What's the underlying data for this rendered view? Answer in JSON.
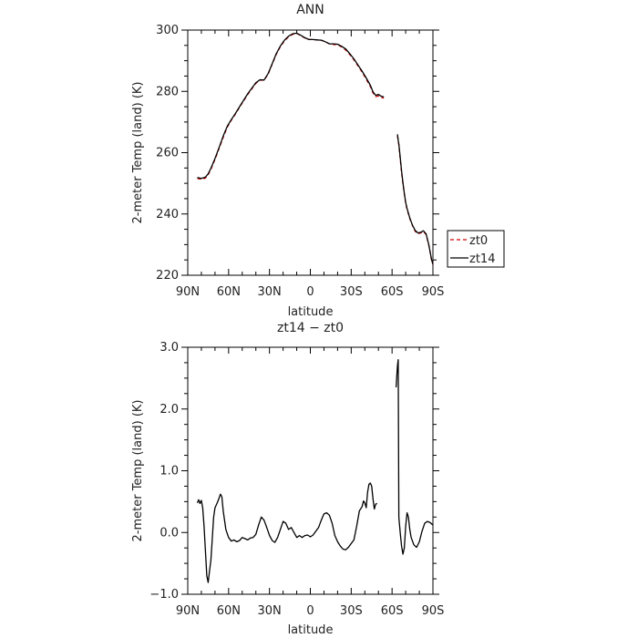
{
  "chart_data": [
    {
      "type": "line",
      "title": "ANN",
      "xlabel": "latitude",
      "ylabel": "2-meter Temp (land) (K)",
      "xlim": [
        90,
        -90
      ],
      "ylim": [
        220,
        300
      ],
      "x_ticks": [
        90,
        60,
        30,
        0,
        -30,
        -60,
        -90
      ],
      "x_tick_labels": [
        "90N",
        "60N",
        "30N",
        "0",
        "30S",
        "60S",
        "90S"
      ],
      "y_ticks": [
        220,
        240,
        260,
        280,
        300
      ],
      "y_tick_labels": [
        "220",
        "240",
        "260",
        "280",
        "300"
      ],
      "legend": {
        "placement": "right",
        "entries": [
          "zt0",
          "zt14"
        ]
      },
      "series": [
        {
          "name": "zt0",
          "color": "#cc0000",
          "dash": "dashed",
          "segments": [
            [
              [
                83,
                251.6
              ],
              [
                80,
                251.3
              ],
              [
                77,
                251.7
              ],
              [
                75,
                252.8
              ],
              [
                73,
                254.6
              ],
              [
                70,
                257.8
              ],
              [
                67,
                261.4
              ],
              [
                64,
                265.0
              ],
              [
                61,
                268.3
              ],
              [
                58,
                270.6
              ],
              [
                55,
                272.6
              ],
              [
                52,
                274.8
              ],
              [
                49,
                276.9
              ],
              [
                46,
                279.0
              ],
              [
                43,
                280.8
              ],
              [
                40,
                282.6
              ],
              [
                37,
                283.7
              ],
              [
                34,
                283.6
              ],
              [
                31,
                285.6
              ],
              [
                28,
                288.9
              ],
              [
                25,
                292.1
              ],
              [
                22,
                294.6
              ],
              [
                19,
                296.5
              ],
              [
                16,
                297.8
              ],
              [
                13,
                298.6
              ],
              [
                10,
                298.9
              ],
              [
                7,
                298.2
              ],
              [
                4,
                297.4
              ],
              [
                1,
                296.9
              ],
              [
                -2,
                296.9
              ],
              [
                -5,
                296.8
              ],
              [
                -8,
                296.7
              ],
              [
                -11,
                296.2
              ],
              [
                -14,
                295.5
              ],
              [
                -17,
                295.3
              ],
              [
                -20,
                295.2
              ],
              [
                -23,
                294.5
              ],
              [
                -26,
                293.5
              ],
              [
                -29,
                292.0
              ],
              [
                -32,
                290.3
              ],
              [
                -35,
                288.3
              ],
              [
                -38,
                286.3
              ],
              [
                -41,
                284.0
              ],
              [
                -44,
                281.6
              ],
              [
                -46,
                279.5
              ],
              [
                -48,
                278.3
              ],
              [
                -50,
                278.5
              ],
              [
                -52,
                278.0
              ],
              [
                -54,
                277.8
              ]
            ],
            [
              [
                -64,
                265.5
              ],
              [
                -65,
                262.5
              ],
              [
                -66,
                258.0
              ],
              [
                -67,
                253.5
              ],
              [
                -68,
                249.8
              ],
              [
                -69,
                246.5
              ],
              [
                -70,
                243.5
              ],
              [
                -71,
                241.5
              ],
              [
                -73,
                238.5
              ],
              [
                -75,
                236.2
              ],
              [
                -77,
                234.3
              ],
              [
                -79,
                233.5
              ],
              [
                -81,
                233.8
              ],
              [
                -83,
                234.3
              ],
              [
                -85,
                233.3
              ],
              [
                -87,
                229.8
              ],
              [
                -89,
                225.0
              ],
              [
                -90,
                223.5
              ]
            ]
          ]
        },
        {
          "name": "zt14",
          "color": "#000000",
          "dash": "solid",
          "segments": [
            [
              [
                83,
                251.9
              ],
              [
                80,
                251.6
              ],
              [
                77,
                252.0
              ],
              [
                75,
                253.1
              ],
              [
                73,
                254.9
              ],
              [
                70,
                258.1
              ],
              [
                67,
                261.7
              ],
              [
                64,
                265.4
              ],
              [
                61,
                268.6
              ],
              [
                58,
                270.8
              ],
              [
                55,
                272.8
              ],
              [
                52,
                275.0
              ],
              [
                49,
                277.1
              ],
              [
                46,
                279.2
              ],
              [
                43,
                281.0
              ],
              [
                40,
                282.8
              ],
              [
                37,
                283.8
              ],
              [
                34,
                283.7
              ],
              [
                31,
                285.8
              ],
              [
                28,
                289.1
              ],
              [
                25,
                292.3
              ],
              [
                22,
                294.8
              ],
              [
                19,
                296.7
              ],
              [
                16,
                298.0
              ],
              [
                13,
                298.8
              ],
              [
                10,
                299.0
              ],
              [
                7,
                298.3
              ],
              [
                4,
                297.5
              ],
              [
                1,
                296.9
              ],
              [
                -2,
                296.9
              ],
              [
                -5,
                296.8
              ],
              [
                -8,
                296.7
              ],
              [
                -11,
                296.2
              ],
              [
                -14,
                295.5
              ],
              [
                -17,
                295.5
              ],
              [
                -20,
                295.4
              ],
              [
                -23,
                294.7
              ],
              [
                -26,
                293.8
              ],
              [
                -29,
                292.3
              ],
              [
                -32,
                290.6
              ],
              [
                -35,
                288.6
              ],
              [
                -38,
                286.6
              ],
              [
                -41,
                284.4
              ],
              [
                -44,
                282.0
              ],
              [
                -46,
                279.9
              ],
              [
                -48,
                278.7
              ],
              [
                -50,
                279.0
              ],
              [
                -52,
                278.4
              ],
              [
                -54,
                278.2
              ]
            ],
            [
              [
                -64,
                266.0
              ],
              [
                -64.5,
                264.0
              ],
              [
                -65,
                262.8
              ],
              [
                -66,
                258.5
              ],
              [
                -67,
                254.0
              ],
              [
                -68,
                250.2
              ],
              [
                -69,
                246.8
              ],
              [
                -70,
                243.8
              ],
              [
                -71,
                241.8
              ],
              [
                -73,
                238.7
              ],
              [
                -75,
                236.3
              ],
              [
                -77,
                234.6
              ],
              [
                -79,
                233.8
              ],
              [
                -81,
                234.0
              ],
              [
                -83,
                234.5
              ],
              [
                -85,
                233.5
              ],
              [
                -87,
                229.9
              ],
              [
                -89,
                225.1
              ],
              [
                -90,
                223.6
              ]
            ]
          ]
        }
      ]
    },
    {
      "type": "line",
      "title": "zt14 − zt0",
      "xlabel": "latitude",
      "ylabel": "2-meter Temp (land) (K)",
      "xlim": [
        90,
        -90
      ],
      "ylim": [
        -1.0,
        3.0
      ],
      "x_ticks": [
        90,
        60,
        30,
        0,
        -30,
        -60,
        -90
      ],
      "x_tick_labels": [
        "90N",
        "60N",
        "30N",
        "0",
        "30S",
        "60S",
        "90S"
      ],
      "y_ticks": [
        -1.0,
        0.0,
        1.0,
        2.0,
        3.0
      ],
      "y_tick_labels": [
        "−1.0",
        "0.0",
        "1.0",
        "2.0",
        "3.0"
      ],
      "series": [
        {
          "name": "",
          "color": "#000000",
          "dash": "solid",
          "segments": [
            [
              [
                83,
                0.48
              ],
              [
                82,
                0.53
              ],
              [
                81,
                0.47
              ],
              [
                80,
                0.52
              ],
              [
                79,
                0.4
              ],
              [
                78,
                0.1
              ],
              [
                77,
                -0.3
              ],
              [
                76,
                -0.7
              ],
              [
                75,
                -0.81
              ],
              [
                74,
                -0.62
              ],
              [
                73,
                -0.45
              ],
              [
                72,
                -0.1
              ],
              [
                71,
                0.25
              ],
              [
                70,
                0.4
              ],
              [
                68,
                0.5
              ],
              [
                66,
                0.62
              ],
              [
                65,
                0.58
              ],
              [
                64,
                0.35
              ],
              [
                62,
                0.05
              ],
              [
                60,
                -0.08
              ],
              [
                58,
                -0.14
              ],
              [
                56,
                -0.12
              ],
              [
                54,
                -0.15
              ],
              [
                52,
                -0.13
              ],
              [
                50,
                -0.08
              ],
              [
                48,
                -0.1
              ],
              [
                46,
                -0.12
              ],
              [
                44,
                -0.09
              ],
              [
                42,
                -0.08
              ],
              [
                40,
                -0.03
              ],
              [
                38,
                0.12
              ],
              [
                36,
                0.25
              ],
              [
                34,
                0.2
              ],
              [
                32,
                0.08
              ],
              [
                30,
                -0.05
              ],
              [
                28,
                -0.13
              ],
              [
                26,
                -0.16
              ],
              [
                24,
                -0.08
              ],
              [
                22,
                0.05
              ],
              [
                20,
                0.18
              ],
              [
                18,
                0.15
              ],
              [
                16,
                0.05
              ],
              [
                14,
                0.08
              ],
              [
                12,
                0.0
              ],
              [
                10,
                -0.08
              ],
              [
                8,
                -0.05
              ],
              [
                6,
                -0.08
              ],
              [
                4,
                -0.05
              ],
              [
                2,
                -0.04
              ],
              [
                0,
                -0.07
              ],
              [
                -2,
                -0.04
              ],
              [
                -4,
                0.02
              ],
              [
                -6,
                0.08
              ],
              [
                -8,
                0.2
              ],
              [
                -10,
                0.3
              ],
              [
                -12,
                0.32
              ],
              [
                -14,
                0.28
              ],
              [
                -16,
                0.15
              ],
              [
                -18,
                -0.05
              ],
              [
                -20,
                -0.15
              ],
              [
                -22,
                -0.22
              ],
              [
                -24,
                -0.27
              ],
              [
                -26,
                -0.28
              ],
              [
                -28,
                -0.24
              ],
              [
                -30,
                -0.18
              ],
              [
                -32,
                -0.12
              ],
              [
                -34,
                0.1
              ],
              [
                -36,
                0.35
              ],
              [
                -38,
                0.42
              ],
              [
                -39,
                0.51
              ],
              [
                -40,
                0.48
              ],
              [
                -41,
                0.4
              ],
              [
                -42,
                0.65
              ],
              [
                -43,
                0.78
              ],
              [
                -44,
                0.8
              ],
              [
                -45,
                0.75
              ],
              [
                -46,
                0.55
              ],
              [
                -47,
                0.38
              ],
              [
                -48,
                0.46
              ],
              [
                -49,
                0.47
              ]
            ],
            [
              [
                -63,
                2.35
              ],
              [
                -63.5,
                2.55
              ],
              [
                -64,
                2.7
              ],
              [
                -64.5,
                2.8
              ],
              [
                -65,
                0.25
              ],
              [
                -66,
                0.0
              ],
              [
                -67,
                -0.22
              ],
              [
                -68,
                -0.35
              ],
              [
                -69,
                -0.25
              ],
              [
                -70,
                0.1
              ],
              [
                -71,
                0.32
              ],
              [
                -72,
                0.25
              ],
              [
                -73,
                0.05
              ],
              [
                -74,
                -0.08
              ],
              [
                -76,
                -0.2
              ],
              [
                -78,
                -0.24
              ],
              [
                -80,
                -0.15
              ],
              [
                -82,
                0.02
              ],
              [
                -84,
                0.15
              ],
              [
                -86,
                0.18
              ],
              [
                -88,
                0.16
              ],
              [
                -90,
                0.12
              ]
            ]
          ]
        }
      ]
    }
  ]
}
